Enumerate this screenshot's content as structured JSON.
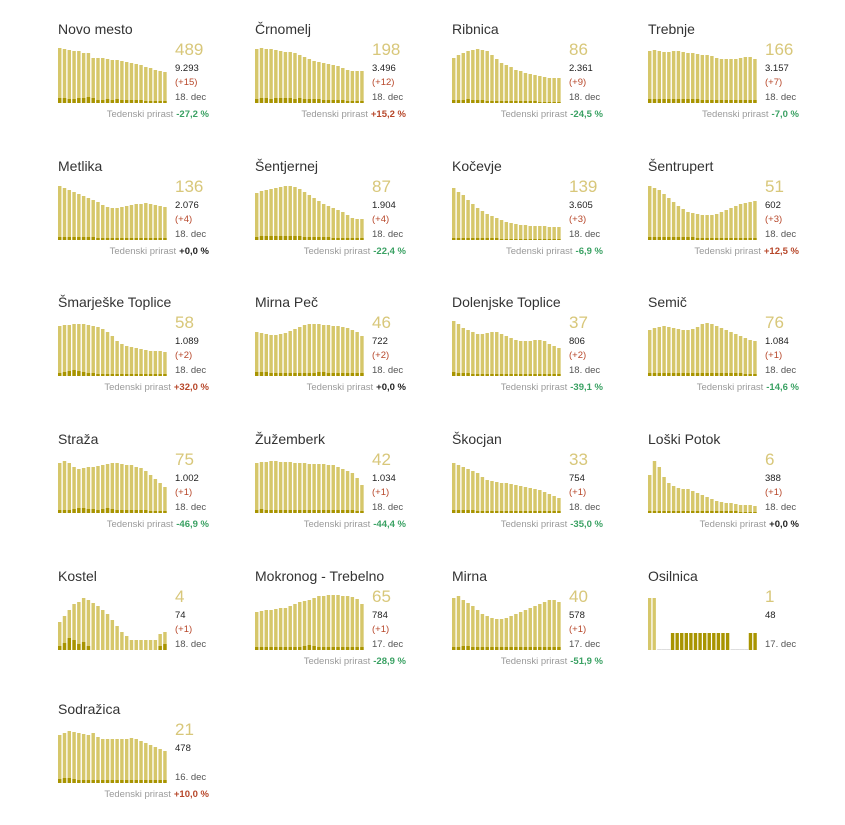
{
  "growth_label": "Tedenski prirast",
  "colors": {
    "bar": "#d6c76b",
    "bar_light": "#e4d68a",
    "bar_new": "#a89400",
    "positive": "#b7472a",
    "negative": "#3aa163"
  },
  "chart_data": [
    {
      "type": "bar",
      "title": "Novo mesto",
      "active": "489",
      "total": "9.293",
      "new": "(+15)",
      "date": "18. dec",
      "weekly_growth": "-27,2 %",
      "values": [
        55,
        54,
        53,
        52,
        52,
        50,
        50,
        45,
        45,
        45,
        44,
        43,
        43,
        42,
        41,
        40,
        39,
        38,
        36,
        35,
        33,
        32,
        31
      ],
      "new_values": [
        5,
        5,
        4,
        4,
        5,
        5,
        6,
        5,
        3,
        3,
        4,
        3,
        4,
        3,
        3,
        3,
        3,
        3,
        2,
        2,
        2,
        2,
        2
      ]
    },
    {
      "type": "bar",
      "title": "Črnomelj",
      "active": "198",
      "total": "3.496",
      "new": "(+12)",
      "date": "18. dec",
      "weekly_growth": "+15,2 %",
      "values": [
        54,
        55,
        54,
        54,
        53,
        52,
        51,
        51,
        50,
        48,
        46,
        44,
        42,
        41,
        40,
        39,
        38,
        37,
        35,
        33,
        32,
        32,
        32
      ],
      "new_values": [
        4,
        5,
        5,
        4,
        5,
        5,
        5,
        5,
        4,
        5,
        4,
        4,
        4,
        4,
        3,
        3,
        3,
        3,
        3,
        2,
        2,
        2,
        2
      ]
    },
    {
      "type": "bar",
      "title": "Ribnica",
      "active": "86",
      "total": "2.361",
      "new": "(+9)",
      "date": "18. dec",
      "weekly_growth": "-24,5 %",
      "values": [
        45,
        48,
        50,
        52,
        53,
        54,
        53,
        52,
        48,
        44,
        40,
        38,
        36,
        33,
        32,
        30,
        29,
        28,
        27,
        26,
        25,
        25,
        25
      ],
      "new_values": [
        3,
        3,
        3,
        4,
        3,
        3,
        3,
        2,
        2,
        2,
        2,
        2,
        2,
        2,
        2,
        2,
        2,
        2,
        1,
        1,
        1,
        1,
        1
      ]
    },
    {
      "type": "bar",
      "title": "Trebnje",
      "active": "166",
      "total": "3.157",
      "new": "(+7)",
      "date": "18. dec",
      "weekly_growth": "-7,0 %",
      "values": [
        52,
        53,
        52,
        51,
        51,
        52,
        52,
        51,
        50,
        50,
        49,
        48,
        48,
        47,
        45,
        44,
        44,
        44,
        44,
        45,
        46,
        46,
        44
      ],
      "new_values": [
        4,
        4,
        4,
        4,
        4,
        4,
        4,
        4,
        4,
        4,
        4,
        3,
        3,
        3,
        3,
        3,
        3,
        3,
        3,
        3,
        3,
        3,
        3
      ]
    },
    {
      "type": "bar",
      "title": "Metlika",
      "active": "136",
      "total": "2.076",
      "new": "(+4)",
      "date": "18. dec",
      "weekly_growth": "+0,0 %",
      "values": [
        54,
        52,
        50,
        48,
        46,
        44,
        42,
        40,
        38,
        35,
        33,
        32,
        32,
        33,
        34,
        35,
        36,
        36,
        37,
        36,
        35,
        34,
        33
      ],
      "new_values": [
        3,
        3,
        3,
        3,
        3,
        3,
        3,
        3,
        2,
        2,
        2,
        2,
        2,
        2,
        2,
        2,
        2,
        2,
        2,
        2,
        2,
        2,
        2
      ]
    },
    {
      "type": "bar",
      "title": "Šentjernej",
      "active": "87",
      "total": "1.904",
      "new": "(+4)",
      "date": "18. dec",
      "weekly_growth": "-22,4 %",
      "values": [
        47,
        49,
        50,
        51,
        52,
        53,
        54,
        54,
        53,
        51,
        48,
        45,
        42,
        39,
        36,
        34,
        32,
        30,
        28,
        25,
        22,
        21,
        21
      ],
      "new_values": [
        3,
        4,
        4,
        4,
        4,
        4,
        4,
        4,
        4,
        4,
        3,
        3,
        3,
        3,
        3,
        3,
        2,
        2,
        2,
        2,
        2,
        2,
        2
      ]
    },
    {
      "type": "bar",
      "title": "Kočevje",
      "active": "139",
      "total": "3.605",
      "new": "(+3)",
      "date": "18. dec",
      "weekly_growth": "-6,9 %",
      "values": [
        52,
        48,
        45,
        40,
        36,
        32,
        29,
        26,
        24,
        22,
        20,
        18,
        17,
        16,
        15,
        15,
        14,
        14,
        14,
        14,
        13,
        13,
        13
      ],
      "new_values": [
        2,
        2,
        2,
        2,
        2,
        2,
        2,
        2,
        2,
        2,
        1,
        1,
        1,
        1,
        1,
        1,
        1,
        1,
        1,
        1,
        1,
        1,
        1
      ]
    },
    {
      "type": "bar",
      "title": "Šentrupert",
      "active": "51",
      "total": "602",
      "new": "(+3)",
      "date": "18. dec",
      "weekly_growth": "+12,5 %",
      "values": [
        54,
        52,
        50,
        46,
        42,
        38,
        34,
        31,
        28,
        27,
        26,
        25,
        25,
        25,
        26,
        28,
        30,
        32,
        34,
        36,
        37,
        38,
        39
      ],
      "new_values": [
        3,
        3,
        3,
        3,
        3,
        3,
        3,
        3,
        3,
        3,
        2,
        2,
        2,
        2,
        2,
        2,
        2,
        2,
        2,
        2,
        2,
        2,
        2
      ]
    },
    {
      "type": "bar",
      "title": "Šmarješke Toplice",
      "active": "58",
      "total": "1.089",
      "new": "(+2)",
      "date": "18. dec",
      "weekly_growth": "+32,0 %",
      "values": [
        50,
        51,
        51,
        52,
        52,
        52,
        51,
        50,
        49,
        47,
        44,
        40,
        35,
        32,
        30,
        29,
        28,
        27,
        26,
        25,
        25,
        25,
        24
      ],
      "new_values": [
        3,
        4,
        5,
        6,
        5,
        4,
        3,
        3,
        2,
        2,
        2,
        2,
        2,
        2,
        2,
        2,
        2,
        2,
        2,
        2,
        2,
        2,
        2
      ]
    },
    {
      "type": "bar",
      "title": "Mirna Peč",
      "active": "46",
      "total": "722",
      "new": "(+2)",
      "date": "18. dec",
      "weekly_growth": "+0,0 %",
      "values": [
        44,
        43,
        42,
        41,
        41,
        42,
        43,
        45,
        47,
        49,
        51,
        52,
        52,
        52,
        51,
        51,
        50,
        50,
        49,
        48,
        46,
        44,
        40
      ],
      "new_values": [
        4,
        4,
        4,
        3,
        3,
        3,
        3,
        3,
        3,
        3,
        3,
        3,
        3,
        4,
        4,
        3,
        3,
        3,
        3,
        3,
        3,
        3,
        3
      ]
    },
    {
      "type": "bar",
      "title": "Dolenjske Toplice",
      "active": "37",
      "total": "806",
      "new": "(+2)",
      "date": "18. dec",
      "weekly_growth": "-39,1 %",
      "values": [
        55,
        52,
        48,
        46,
        44,
        42,
        42,
        43,
        44,
        44,
        42,
        40,
        38,
        36,
        35,
        35,
        35,
        36,
        36,
        35,
        32,
        30,
        28
      ],
      "new_values": [
        4,
        3,
        3,
        3,
        2,
        2,
        2,
        2,
        2,
        2,
        2,
        2,
        2,
        2,
        2,
        2,
        2,
        2,
        2,
        2,
        2,
        2,
        2
      ]
    },
    {
      "type": "bar",
      "title": "Semič",
      "active": "76",
      "total": "1.084",
      "new": "(+1)",
      "date": "18. dec",
      "weekly_growth": "-14,6 %",
      "values": [
        46,
        48,
        49,
        50,
        49,
        48,
        47,
        46,
        46,
        47,
        49,
        52,
        53,
        52,
        50,
        48,
        46,
        44,
        42,
        40,
        38,
        36,
        35
      ],
      "new_values": [
        3,
        3,
        3,
        3,
        3,
        3,
        3,
        3,
        3,
        3,
        3,
        3,
        3,
        3,
        3,
        3,
        3,
        3,
        3,
        3,
        2,
        2,
        2
      ]
    },
    {
      "type": "bar",
      "title": "Straža",
      "active": "75",
      "total": "1.002",
      "new": "(+1)",
      "date": "18. dec",
      "weekly_growth": "-46,9 %",
      "values": [
        50,
        52,
        50,
        46,
        44,
        45,
        46,
        46,
        47,
        48,
        49,
        50,
        50,
        49,
        48,
        48,
        46,
        45,
        42,
        38,
        34,
        30,
        26
      ],
      "new_values": [
        3,
        3,
        3,
        4,
        5,
        5,
        4,
        4,
        3,
        4,
        5,
        4,
        3,
        3,
        3,
        3,
        3,
        3,
        3,
        2,
        2,
        2,
        2
      ]
    },
    {
      "type": "bar",
      "title": "Žužemberk",
      "active": "42",
      "total": "1.034",
      "new": "(+1)",
      "date": "18. dec",
      "weekly_growth": "-44,4 %",
      "values": [
        50,
        51,
        51,
        52,
        52,
        51,
        51,
        51,
        50,
        50,
        50,
        49,
        49,
        49,
        49,
        48,
        48,
        46,
        44,
        42,
        40,
        35,
        28
      ],
      "new_values": [
        3,
        4,
        3,
        3,
        3,
        3,
        3,
        3,
        3,
        3,
        3,
        3,
        3,
        3,
        3,
        3,
        3,
        3,
        3,
        3,
        3,
        2,
        2
      ]
    },
    {
      "type": "bar",
      "title": "Škocjan",
      "active": "33",
      "total": "754",
      "new": "(+1)",
      "date": "18. dec",
      "weekly_growth": "-35,0 %",
      "values": [
        50,
        48,
        46,
        44,
        42,
        40,
        36,
        33,
        32,
        31,
        30,
        30,
        29,
        28,
        27,
        26,
        25,
        24,
        23,
        21,
        19,
        17,
        15
      ],
      "new_values": [
        3,
        3,
        3,
        3,
        3,
        2,
        2,
        2,
        2,
        2,
        2,
        2,
        2,
        2,
        2,
        2,
        2,
        2,
        2,
        2,
        2,
        2,
        2
      ]
    },
    {
      "type": "bar",
      "title": "Loški Potok",
      "active": "6",
      "total": "388",
      "new": "(+1)",
      "date": "18. dec",
      "weekly_growth": "+0,0 %",
      "values": [
        38,
        52,
        46,
        36,
        30,
        27,
        25,
        24,
        24,
        22,
        20,
        18,
        16,
        14,
        12,
        11,
        10,
        10,
        9,
        8,
        8,
        8,
        7
      ],
      "new_values": [
        2,
        2,
        2,
        2,
        2,
        2,
        2,
        2,
        2,
        2,
        2,
        2,
        2,
        2,
        2,
        2,
        2,
        2,
        2,
        1,
        1,
        1,
        1
      ]
    },
    {
      "type": "bar",
      "title": "Kostel",
      "active": "4",
      "total": "74",
      "new": "(+1)",
      "date": "18. dec",
      "weekly_growth": "",
      "values": [
        28,
        34,
        40,
        46,
        48,
        52,
        50,
        47,
        44,
        40,
        36,
        30,
        24,
        18,
        14,
        10,
        10,
        10,
        10,
        10,
        10,
        16,
        18
      ],
      "new_values": [
        4,
        7,
        12,
        10,
        6,
        8,
        4,
        0,
        0,
        0,
        0,
        0,
        0,
        0,
        0,
        0,
        0,
        0,
        0,
        0,
        0,
        4,
        6
      ]
    },
    {
      "type": "bar",
      "title": "Mokronog - Trebelno",
      "active": "65",
      "total": "784",
      "new": "(+1)",
      "date": "17. dec",
      "weekly_growth": "-28,9 %",
      "values": [
        38,
        39,
        40,
        40,
        41,
        42,
        42,
        44,
        46,
        48,
        49,
        50,
        52,
        54,
        54,
        55,
        55,
        55,
        54,
        54,
        53,
        51,
        46
      ],
      "new_values": [
        3,
        3,
        3,
        3,
        3,
        3,
        3,
        3,
        3,
        3,
        4,
        5,
        4,
        3,
        3,
        3,
        3,
        3,
        3,
        3,
        3,
        3,
        3
      ]
    },
    {
      "type": "bar",
      "title": "Mirna",
      "active": "40",
      "total": "578",
      "new": "(+1)",
      "date": "17. dec",
      "weekly_growth": "-51,9 %",
      "values": [
        52,
        54,
        50,
        47,
        44,
        40,
        36,
        34,
        32,
        31,
        31,
        32,
        34,
        36,
        38,
        40,
        42,
        44,
        46,
        48,
        50,
        50,
        48
      ],
      "new_values": [
        3,
        3,
        4,
        4,
        3,
        3,
        3,
        3,
        3,
        3,
        3,
        3,
        3,
        3,
        3,
        3,
        3,
        3,
        3,
        3,
        3,
        3,
        3
      ]
    },
    {
      "type": "bar",
      "title": "Osilnica",
      "active": "1",
      "total": "48",
      "new": "",
      "date": "17. dec",
      "weekly_growth": "",
      "values": [
        52,
        52,
        0,
        0,
        0,
        17,
        17,
        17,
        17,
        17,
        17,
        17,
        17,
        17,
        17,
        17,
        17,
        17,
        0,
        0,
        0,
        0,
        17,
        17
      ],
      "new_values": [
        0,
        0,
        0,
        0,
        0,
        17,
        17,
        17,
        17,
        17,
        17,
        17,
        17,
        17,
        17,
        17,
        17,
        17,
        0,
        0,
        0,
        0,
        17,
        17
      ]
    },
    {
      "type": "bar",
      "title": "Sodražica",
      "active": "21",
      "total": "478",
      "new": "",
      "date": "16. dec",
      "weekly_growth": "+10,0 %",
      "values": [
        48,
        50,
        52,
        51,
        50,
        49,
        48,
        50,
        46,
        44,
        44,
        44,
        44,
        44,
        44,
        45,
        44,
        42,
        40,
        38,
        36,
        34,
        32
      ],
      "new_values": [
        4,
        5,
        5,
        4,
        3,
        3,
        3,
        3,
        3,
        3,
        3,
        3,
        3,
        3,
        3,
        3,
        3,
        3,
        3,
        3,
        3,
        3,
        3
      ]
    }
  ]
}
